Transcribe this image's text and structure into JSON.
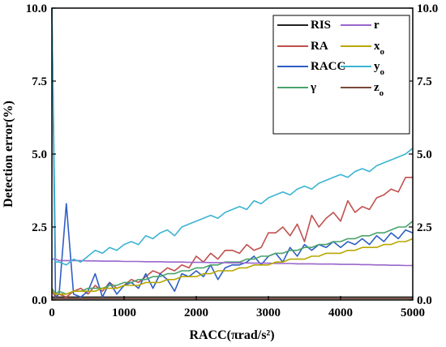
{
  "chart_data": {
    "type": "line",
    "xlabel": "RACC(πrad/s²)",
    "ylabel": "Detection error(%)",
    "xlim": [
      0,
      5000
    ],
    "ylim": [
      0,
      10
    ],
    "x_ticks": [
      "0",
      "1000",
      "2000",
      "3000",
      "4000",
      "5000"
    ],
    "y_ticks": [
      "0.0",
      "2.5",
      "5.0",
      "7.5",
      "10.0"
    ],
    "y_ticks_right": [
      "0.0",
      "2.5",
      "5.0",
      "7.5",
      "10.0"
    ],
    "legend_position": "top-right",
    "x": [
      0,
      50,
      100,
      200,
      300,
      400,
      500,
      600,
      700,
      800,
      900,
      1000,
      1100,
      1200,
      1300,
      1400,
      1500,
      1600,
      1700,
      1800,
      1900,
      2000,
      2100,
      2200,
      2300,
      2400,
      2500,
      2600,
      2700,
      2800,
      2900,
      3000,
      3100,
      3200,
      3300,
      3400,
      3500,
      3600,
      3700,
      3800,
      3900,
      4000,
      4100,
      4200,
      4300,
      4400,
      4500,
      4600,
      4700,
      4800,
      4900,
      5000
    ],
    "series": [
      {
        "name": "RIS",
        "color": "#222222",
        "values": [
          0.1,
          0.1,
          0.1,
          0.1,
          0.1,
          0.1,
          0.1,
          0.1,
          0.1,
          0.1,
          0.1,
          0.1,
          0.1,
          0.1,
          0.1,
          0.1,
          0.1,
          0.1,
          0.1,
          0.1,
          0.1,
          0.1,
          0.1,
          0.1,
          0.1,
          0.1,
          0.1,
          0.1,
          0.1,
          0.1,
          0.1,
          0.1,
          0.1,
          0.1,
          0.1,
          0.1,
          0.1,
          0.1,
          0.1,
          0.1,
          0.1,
          0.1,
          0.1,
          0.1,
          0.1,
          0.1,
          0.1,
          0.1,
          0.1,
          0.1,
          0.1,
          0.1
        ]
      },
      {
        "name": "RA",
        "color": "#c0504d",
        "values": [
          0.3,
          0.1,
          0.2,
          0.1,
          0.3,
          0.4,
          0.2,
          0.5,
          0.3,
          0.6,
          0.4,
          0.5,
          0.7,
          0.6,
          0.8,
          1.0,
          0.9,
          1.1,
          1.0,
          1.2,
          1.1,
          1.5,
          1.3,
          1.6,
          1.4,
          1.7,
          1.7,
          1.6,
          1.9,
          1.7,
          1.8,
          2.3,
          2.3,
          2.5,
          2.2,
          2.6,
          2.0,
          2.9,
          2.5,
          2.8,
          3.0,
          2.7,
          3.4,
          3.0,
          3.2,
          3.1,
          3.5,
          3.6,
          3.8,
          3.7,
          4.2,
          4.2
        ]
      },
      {
        "name": "RACC",
        "color": "#2f5fc4",
        "values": [
          10.0,
          0.1,
          0.2,
          3.3,
          0.2,
          0.1,
          0.3,
          0.9,
          0.1,
          0.6,
          0.2,
          0.5,
          0.6,
          0.4,
          0.9,
          0.4,
          0.9,
          0.7,
          0.3,
          0.9,
          0.8,
          1.0,
          0.8,
          1.2,
          0.7,
          1.1,
          1.2,
          1.2,
          1.3,
          1.5,
          1.2,
          1.5,
          1.6,
          1.3,
          1.8,
          1.5,
          1.9,
          1.7,
          1.9,
          1.8,
          2.0,
          1.8,
          2.0,
          1.9,
          2.1,
          1.9,
          2.2,
          2.0,
          2.3,
          2.1,
          2.4,
          2.3
        ]
      },
      {
        "name": "γ",
        "color": "#4aa36b",
        "values": [
          0.4,
          0.2,
          0.3,
          0.2,
          0.3,
          0.3,
          0.4,
          0.4,
          0.4,
          0.5,
          0.5,
          0.6,
          0.6,
          0.7,
          0.7,
          0.8,
          0.8,
          0.9,
          0.9,
          1.0,
          1.0,
          1.1,
          1.1,
          1.2,
          1.2,
          1.3,
          1.3,
          1.3,
          1.4,
          1.4,
          1.5,
          1.5,
          1.6,
          1.6,
          1.7,
          1.7,
          1.8,
          1.8,
          1.9,
          1.9,
          2.0,
          2.0,
          2.1,
          2.1,
          2.2,
          2.2,
          2.3,
          2.3,
          2.4,
          2.5,
          2.5,
          2.7
        ]
      },
      {
        "name": "r",
        "color": "#9966cc",
        "values": [
          1.4,
          1.4,
          1.35,
          1.35,
          1.35,
          1.35,
          1.34,
          1.34,
          1.33,
          1.33,
          1.33,
          1.32,
          1.32,
          1.32,
          1.31,
          1.31,
          1.31,
          1.3,
          1.3,
          1.3,
          1.29,
          1.29,
          1.29,
          1.28,
          1.28,
          1.28,
          1.27,
          1.27,
          1.27,
          1.26,
          1.26,
          1.26,
          1.25,
          1.25,
          1.25,
          1.24,
          1.24,
          1.24,
          1.23,
          1.23,
          1.23,
          1.22,
          1.22,
          1.22,
          1.21,
          1.21,
          1.2,
          1.2,
          1.19,
          1.19,
          1.18,
          1.18
        ]
      },
      {
        "name": "x",
        "subscript": "o",
        "color": "#b8a800",
        "values": [
          0.3,
          0.2,
          0.2,
          0.2,
          0.3,
          0.3,
          0.3,
          0.3,
          0.4,
          0.4,
          0.4,
          0.5,
          0.5,
          0.5,
          0.6,
          0.6,
          0.6,
          0.7,
          0.7,
          0.8,
          0.8,
          0.8,
          0.9,
          0.9,
          1.0,
          1.0,
          1.0,
          1.1,
          1.1,
          1.2,
          1.2,
          1.2,
          1.3,
          1.3,
          1.4,
          1.4,
          1.4,
          1.5,
          1.5,
          1.6,
          1.6,
          1.6,
          1.7,
          1.7,
          1.8,
          1.8,
          1.8,
          1.9,
          1.9,
          2.0,
          2.0,
          2.1
        ]
      },
      {
        "name": "y",
        "subscript": "o",
        "color": "#3cb4d2",
        "values": [
          10.0,
          1.3,
          1.3,
          1.2,
          1.4,
          1.3,
          1.5,
          1.7,
          1.6,
          1.8,
          1.7,
          1.9,
          2.0,
          1.9,
          2.2,
          2.1,
          2.3,
          2.4,
          2.2,
          2.5,
          2.6,
          2.7,
          2.8,
          2.9,
          2.8,
          3.0,
          3.1,
          3.2,
          3.1,
          3.4,
          3.3,
          3.5,
          3.6,
          3.7,
          3.6,
          3.8,
          3.9,
          3.8,
          4.0,
          4.1,
          4.2,
          4.3,
          4.2,
          4.4,
          4.5,
          4.4,
          4.6,
          4.7,
          4.8,
          4.9,
          5.0,
          5.2
        ]
      },
      {
        "name": "z",
        "subscript": "o",
        "color": "#7a4a3a",
        "values": [
          0.05,
          0.05,
          0.05,
          0.05,
          0.05,
          0.05,
          0.05,
          0.05,
          0.05,
          0.05,
          0.05,
          0.05,
          0.05,
          0.05,
          0.05,
          0.05,
          0.05,
          0.05,
          0.05,
          0.05,
          0.05,
          0.05,
          0.05,
          0.05,
          0.05,
          0.05,
          0.05,
          0.05,
          0.05,
          0.05,
          0.05,
          0.05,
          0.05,
          0.05,
          0.05,
          0.05,
          0.05,
          0.05,
          0.05,
          0.05,
          0.05,
          0.05,
          0.05,
          0.05,
          0.05,
          0.05,
          0.05,
          0.05,
          0.05,
          0.05,
          0.05,
          0.05
        ]
      }
    ]
  }
}
